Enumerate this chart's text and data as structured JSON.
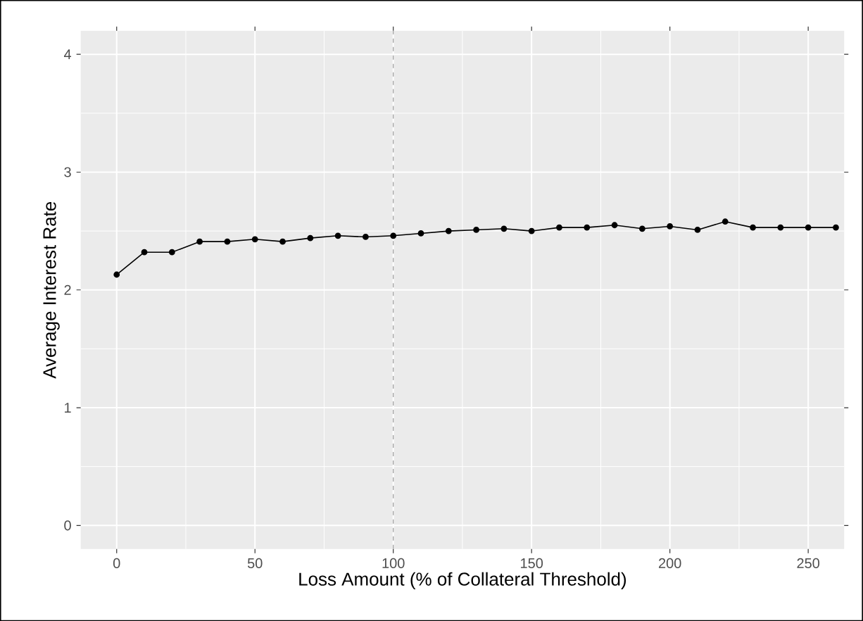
{
  "chart_data": {
    "type": "line",
    "xlabel": "Loss Amount (% of Collateral Threshold)",
    "ylabel": "Average Interest Rate",
    "x": [
      0,
      10,
      20,
      30,
      40,
      50,
      60,
      70,
      80,
      90,
      100,
      110,
      120,
      130,
      140,
      150,
      160,
      170,
      180,
      190,
      200,
      210,
      220,
      230,
      240,
      250,
      260
    ],
    "series": [
      {
        "color": "#000000",
        "values": [
          2.13,
          2.32,
          2.32,
          2.41,
          2.41,
          2.43,
          2.41,
          2.44,
          2.46,
          2.45,
          2.46,
          2.48,
          2.5,
          2.51,
          2.52,
          2.5,
          2.53,
          2.53,
          2.55,
          2.52,
          2.54,
          2.51,
          2.58,
          2.53,
          2.53,
          2.53,
          2.53
        ]
      }
    ],
    "xlim": [
      -13,
      263
    ],
    "ylim": [
      -0.2,
      4.2
    ],
    "xticks": [
      0,
      50,
      100,
      150,
      200,
      250
    ],
    "yticks": [
      0,
      1,
      2,
      3,
      4
    ],
    "ref_lines": [
      {
        "axis": "x",
        "value": 100,
        "color": "#999999",
        "line_style": "dashed"
      }
    ],
    "grid": true,
    "marker": "circle",
    "line_style": "solid"
  }
}
